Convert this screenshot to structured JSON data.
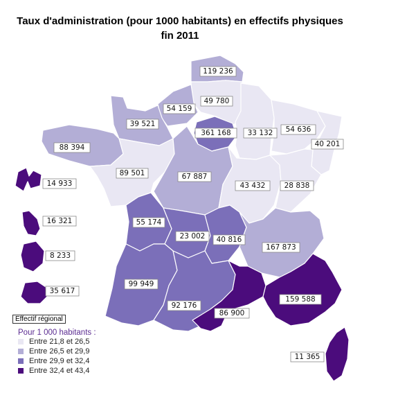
{
  "title_line1": "Taux d'administration (pour 1000 habitants) en effectifs physiques",
  "title_line2": "fin 2011",
  "colors": {
    "c1": "#e9e7f3",
    "c2": "#b3aed6",
    "c3": "#7b6fb9",
    "c4": "#4b0c7c"
  },
  "legend": {
    "box_label": "Effectif régional",
    "subtitle": "Pour 1 000 habitants :",
    "classes": [
      {
        "label": "Entre 21,8 et 26,5",
        "color": "#e9e7f3"
      },
      {
        "label": "Entre 26,5 et 29,9",
        "color": "#b3aed6"
      },
      {
        "label": "Entre 29,9 et 32,4",
        "color": "#7b6fb9"
      },
      {
        "label": "Entre 32,4 et 43,4",
        "color": "#4b0c7c"
      }
    ]
  },
  "regions": {
    "nord": "119 236",
    "picardie": "49 780",
    "haute_normandie": "54 159",
    "basse_normandie": "39 521",
    "bretagne": "88 394",
    "idf": "361 168",
    "champagne": "33 132",
    "lorraine": "54 636",
    "alsace": "40 201",
    "pays_loire": "89 501",
    "centre": "67 887",
    "bourgogne": "43 432",
    "franche_comte": "28 838",
    "poitou": "55 174",
    "limousin": "23 002",
    "auvergne": "40 816",
    "rhone_alpes": "167 873",
    "aquitaine": "99 949",
    "midi_pyrenees": "92 176",
    "languedoc": "86 900",
    "paca": "159 588",
    "corse": "11 365",
    "guadeloupe": "14 933",
    "martinique": "16 321",
    "guyane": "8 233",
    "reunion": "35 617"
  }
}
